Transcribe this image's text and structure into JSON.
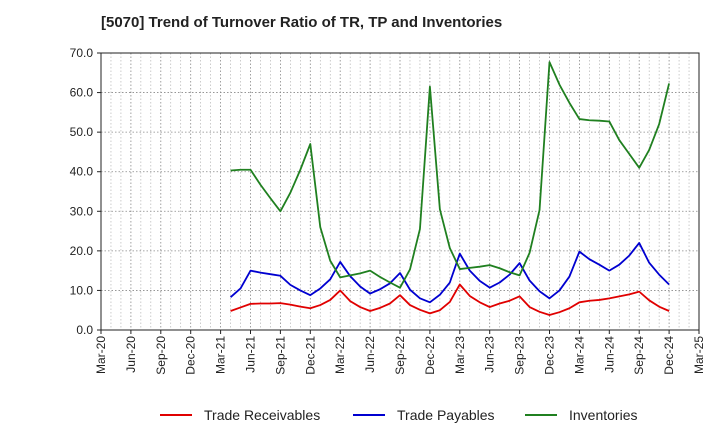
{
  "chart_data": {
    "type": "line",
    "title": "[5070]  Trend of Turnover Ratio of TR, TP and Inventories",
    "xlabel": "",
    "ylabel": "",
    "ylim": [
      0,
      70
    ],
    "y_ticks": [
      "0.0",
      "10.0",
      "20.0",
      "30.0",
      "40.0",
      "50.0",
      "60.0",
      "70.0"
    ],
    "x_tick_labels": [
      "Mar-20",
      "Jun-20",
      "Sep-20",
      "Dec-20",
      "Mar-21",
      "Jun-21",
      "Sep-21",
      "Dec-21",
      "Mar-22",
      "Jun-22",
      "Sep-22",
      "Dec-22",
      "Mar-23",
      "Jun-23",
      "Sep-23",
      "Dec-23",
      "Mar-24",
      "Jun-24",
      "Sep-24",
      "Dec-24",
      "Mar-25"
    ],
    "x": [
      "Apr-21",
      "May-21",
      "Jun-21",
      "Jul-21",
      "Aug-21",
      "Sep-21",
      "Oct-21",
      "Nov-21",
      "Dec-21",
      "Jan-22",
      "Feb-22",
      "Mar-22",
      "Apr-22",
      "May-22",
      "Jun-22",
      "Jul-22",
      "Aug-22",
      "Sep-22",
      "Oct-22",
      "Nov-22",
      "Dec-22",
      "Jan-23",
      "Feb-23",
      "Mar-23",
      "Apr-23",
      "May-23",
      "Jun-23",
      "Jul-23",
      "Aug-23",
      "Sep-23",
      "Oct-23",
      "Nov-23",
      "Dec-23",
      "Jan-24",
      "Feb-24",
      "Mar-24",
      "Apr-24",
      "May-24",
      "Jun-24",
      "Jul-24",
      "Aug-24",
      "Sep-24",
      "Oct-24",
      "Nov-24",
      "Dec-24"
    ],
    "grid": true,
    "legend_position": "bottom",
    "series": [
      {
        "name": "Trade Receivables",
        "color": "#e00000",
        "values": [
          4.8,
          5.7,
          6.6,
          6.7,
          6.7,
          6.8,
          6.4,
          5.9,
          5.5,
          6.3,
          7.6,
          10.0,
          7.3,
          5.8,
          4.8,
          5.6,
          6.7,
          8.8,
          6.3,
          5.1,
          4.2,
          5.0,
          7.1,
          11.5,
          8.6,
          7.0,
          5.8,
          6.7,
          7.4,
          8.5,
          5.8,
          4.6,
          3.8,
          4.5,
          5.5,
          7.0,
          7.4,
          7.6,
          8.0,
          8.5,
          9.0,
          9.7,
          7.5,
          5.9,
          4.8
        ]
      },
      {
        "name": "Trade Payables",
        "color": "#0000d0",
        "values": [
          8.3,
          10.5,
          15.0,
          14.5,
          14.1,
          13.7,
          11.4,
          10.0,
          8.8,
          10.5,
          12.8,
          17.2,
          13.6,
          11.0,
          9.2,
          10.3,
          11.8,
          14.4,
          10.2,
          8.0,
          7.0,
          8.9,
          12.0,
          19.3,
          15.0,
          12.4,
          10.7,
          12.0,
          14.0,
          16.9,
          12.5,
          9.8,
          8.0,
          10.0,
          13.5,
          19.8,
          17.9,
          16.5,
          15.0,
          16.5,
          18.8,
          22.0,
          17.0,
          14.0,
          11.5
        ]
      },
      {
        "name": "Inventories",
        "color": "#208020",
        "values": [
          40.3,
          40.5,
          40.5,
          36.7,
          33.3,
          30.0,
          34.7,
          40.5,
          47.0,
          26.0,
          17.5,
          13.3,
          13.8,
          14.3,
          15.0,
          13.4,
          12.0,
          10.7,
          15.3,
          25.5,
          61.5,
          30.5,
          20.7,
          15.4,
          15.7,
          16.0,
          16.4,
          15.6,
          14.6,
          13.8,
          19.5,
          30.3,
          67.7,
          62.0,
          57.4,
          53.3,
          53.0,
          52.9,
          52.7,
          48.0,
          44.5,
          41.0,
          45.5,
          52.0,
          62.3
        ]
      }
    ]
  }
}
